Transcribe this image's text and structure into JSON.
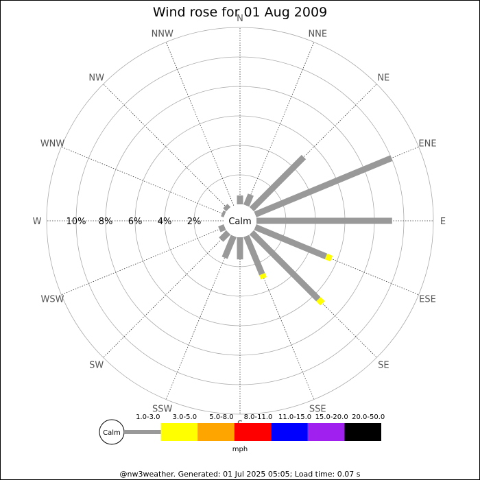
{
  "chart_data": {
    "type": "polar-bar",
    "title": "Wind rose for 01 Aug 2009",
    "calm_label": "Calm",
    "directions": [
      "N",
      "NNE",
      "NE",
      "ENE",
      "E",
      "ESE",
      "SE",
      "SSE",
      "S",
      "SSW",
      "SW",
      "WSW",
      "W",
      "WNW",
      "NW",
      "NNW"
    ],
    "radial_ticks": [
      "2%",
      "4%",
      "6%",
      "8%",
      "10%"
    ],
    "radial_values": [
      2,
      4,
      6,
      8,
      10
    ],
    "r_max": 12,
    "speed_bins": [
      "1.0-3.0",
      "3.0-5.0",
      "5.0-8.0",
      "8.0-11.0",
      "11.0-15.0",
      "15.0-20.0",
      "20.0-50.0"
    ],
    "speed_colors": [
      "#999999",
      "#ffff00",
      "#ffa500",
      "#ff0000",
      "#0000ff",
      "#a020f0",
      "#000000"
    ],
    "speed_unit": "mph",
    "series": [
      {
        "direction": "N",
        "values": [
          0.6,
          0,
          0,
          0,
          0,
          0,
          0
        ]
      },
      {
        "direction": "NNE",
        "values": [
          0.8,
          0,
          0,
          0,
          0,
          0,
          0
        ]
      },
      {
        "direction": "NE",
        "values": [
          5.0,
          0,
          0,
          0,
          0,
          0,
          0
        ]
      },
      {
        "direction": "ENE",
        "values": [
          10.0,
          0,
          0,
          0,
          0,
          0,
          0
        ]
      },
      {
        "direction": "E",
        "values": [
          9.2,
          0,
          0,
          0,
          0,
          0,
          0
        ]
      },
      {
        "direction": "ESE",
        "values": [
          5.2,
          0.4,
          0,
          0,
          0,
          0,
          0
        ]
      },
      {
        "direction": "SE",
        "values": [
          6.4,
          0.4,
          0,
          0,
          0,
          0,
          0
        ]
      },
      {
        "direction": "SSE",
        "values": [
          2.8,
          0.3,
          0,
          0,
          0,
          0,
          0
        ]
      },
      {
        "direction": "S",
        "values": [
          1.5,
          0,
          0,
          0,
          0,
          0,
          0
        ]
      },
      {
        "direction": "SSW",
        "values": [
          1.6,
          0,
          0,
          0,
          0,
          0,
          0
        ]
      },
      {
        "direction": "SW",
        "values": [
          0.7,
          0,
          0,
          0,
          0,
          0,
          0
        ]
      },
      {
        "direction": "WSW",
        "values": [
          0.4,
          0,
          0,
          0,
          0,
          0,
          0
        ]
      },
      {
        "direction": "W",
        "values": [
          0,
          0,
          0,
          0,
          0,
          0,
          0
        ]
      },
      {
        "direction": "WNW",
        "values": [
          0.2,
          0,
          0,
          0,
          0,
          0,
          0
        ]
      },
      {
        "direction": "NW",
        "values": [
          0.3,
          0,
          0,
          0,
          0,
          0,
          0
        ]
      },
      {
        "direction": "NNW",
        "values": [
          0,
          0,
          0,
          0,
          0,
          0,
          0
        ]
      }
    ]
  },
  "footer": "@nw3weather. Generated: 01 Jul 2025 05:05; Load time: 0.07 s"
}
